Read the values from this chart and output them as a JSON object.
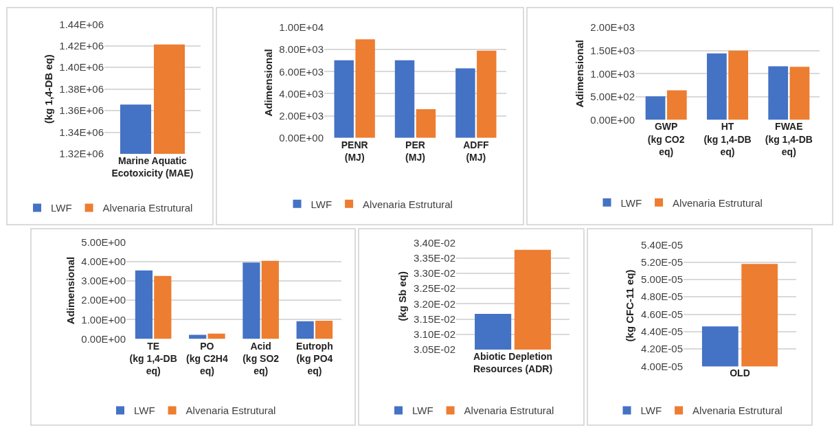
{
  "chart_data": [
    {
      "type": "bar",
      "ylabel": "(kg 1,4-DB eq)",
      "categories": [
        "Marine Aquatic Ecotoxicity (MAE)"
      ],
      "series": [
        {
          "name": "LWF",
          "color": "#4472c4",
          "values": [
            1365600
          ]
        },
        {
          "name": "Alvenaria Estrutural",
          "color": "#ed7d31",
          "values": [
            1421300
          ]
        }
      ],
      "ylim": [
        1320000,
        1440000
      ],
      "yticks": [
        {
          "value": 1320000,
          "label": "1.32E+06"
        },
        {
          "value": 1340000,
          "label": "1.34E+06"
        },
        {
          "value": 1360000,
          "label": "1.36E+06"
        },
        {
          "value": 1380000,
          "label": "1.38E+06"
        },
        {
          "value": 1400000,
          "label": "1.40E+06"
        },
        {
          "value": 1420000,
          "label": "1.42E+06"
        },
        {
          "value": 1440000,
          "label": "1.44E+06"
        }
      ],
      "grid": "y",
      "legend": "bottom"
    },
    {
      "type": "bar",
      "ylabel": "Adimensional",
      "categories": [
        "PENR (MJ)",
        "PER (MJ)",
        "ADFF (MJ)"
      ],
      "series": [
        {
          "name": "LWF",
          "color": "#4472c4",
          "values": [
            7040,
            7040,
            6300
          ]
        },
        {
          "name": "Alvenaria Estrutural",
          "color": "#ed7d31",
          "values": [
            8930,
            2600,
            7910
          ]
        }
      ],
      "ylim": [
        0,
        10000
      ],
      "yticks": [
        {
          "value": 0,
          "label": "0.00E+00"
        },
        {
          "value": 2000,
          "label": "2.00E+03"
        },
        {
          "value": 4000,
          "label": "4.00E+03"
        },
        {
          "value": 6000,
          "label": "6.00E+03"
        },
        {
          "value": 8000,
          "label": "8.00E+03"
        },
        {
          "value": 10000,
          "label": "1.00E+04"
        }
      ],
      "grid": "y",
      "legend": "bottom"
    },
    {
      "type": "bar",
      "ylabel": "Adimensional",
      "categories": [
        "GWP (kg CO2 eq)",
        "HT (kg 1,4-DB eq)",
        "FWAE (kg 1,4-DB eq)"
      ],
      "series": [
        {
          "name": "LWF",
          "color": "#4472c4",
          "values": [
            510,
            1440,
            1160
          ]
        },
        {
          "name": "Alvenaria Estrutural",
          "color": "#ed7d31",
          "values": [
            640,
            1500,
            1150
          ]
        }
      ],
      "ylim": [
        0,
        2000
      ],
      "yticks": [
        {
          "value": 0,
          "label": "0.00E+00"
        },
        {
          "value": 500,
          "label": "5.00E+02"
        },
        {
          "value": 1000,
          "label": "1.00E+03"
        },
        {
          "value": 1500,
          "label": "1.50E+03"
        },
        {
          "value": 2000,
          "label": "2.00E+03"
        }
      ],
      "grid": "y",
      "legend": "bottom"
    },
    {
      "type": "bar",
      "ylabel": "Adimensional",
      "categories": [
        "TE (kg 1,4-DB eq)",
        "PO (kg C2H4 eq)",
        "Acid (kg SO2 eq)",
        "Eutroph (kg PO4 eq)"
      ],
      "series": [
        {
          "name": "LWF",
          "color": "#4472c4",
          "values": [
            3.54,
            0.21,
            3.94,
            0.91
          ]
        },
        {
          "name": "Alvenaria Estrutural",
          "color": "#ed7d31",
          "values": [
            3.25,
            0.28,
            4.03,
            0.94
          ]
        }
      ],
      "ylim": [
        0,
        5
      ],
      "yticks": [
        {
          "value": 0,
          "label": "0.00E+00"
        },
        {
          "value": 1,
          "label": "1.00E+00"
        },
        {
          "value": 2,
          "label": "2.00E+00"
        },
        {
          "value": 3,
          "label": "3.00E+00"
        },
        {
          "value": 4,
          "label": "4.00E+00"
        },
        {
          "value": 5,
          "label": "5.00E+00"
        }
      ],
      "grid": "y",
      "legend": "bottom"
    },
    {
      "type": "bar",
      "ylabel": "(kg Sb eq)",
      "categories": [
        "Abiotic Depletion Resources (ADR)"
      ],
      "series": [
        {
          "name": "LWF",
          "color": "#4472c4",
          "values": [
            0.03167
          ]
        },
        {
          "name": "Alvenaria Estrutural",
          "color": "#ed7d31",
          "values": [
            0.03377
          ]
        }
      ],
      "ylim": [
        0.0305,
        0.034
      ],
      "yticks": [
        {
          "value": 0.0305,
          "label": "3.05E-02"
        },
        {
          "value": 0.031,
          "label": "3.10E-02"
        },
        {
          "value": 0.0315,
          "label": "3.15E-02"
        },
        {
          "value": 0.032,
          "label": "3.20E-02"
        },
        {
          "value": 0.0325,
          "label": "3.25E-02"
        },
        {
          "value": 0.033,
          "label": "3.30E-02"
        },
        {
          "value": 0.0335,
          "label": "3.35E-02"
        },
        {
          "value": 0.034,
          "label": "3.40E-02"
        }
      ],
      "grid": "y",
      "legend": "bottom"
    },
    {
      "type": "bar",
      "ylabel": "(kg CFC-11 eq)",
      "categories": [
        "OLD"
      ],
      "series": [
        {
          "name": "LWF",
          "color": "#4472c4",
          "values": [
            4.46e-05
          ]
        },
        {
          "name": "Alvenaria Estrutural",
          "color": "#ed7d31",
          "values": [
            5.18e-05
          ]
        }
      ],
      "ylim": [
        4e-05,
        5.4e-05
      ],
      "yticks": [
        {
          "value": 4e-05,
          "label": "4.00E-05"
        },
        {
          "value": 4.2e-05,
          "label": "4.20E-05"
        },
        {
          "value": 4.4e-05,
          "label": "4.40E-05"
        },
        {
          "value": 4.6e-05,
          "label": "4.60E-05"
        },
        {
          "value": 4.8e-05,
          "label": "4.80E-05"
        },
        {
          "value": 5e-05,
          "label": "5.00E-05"
        },
        {
          "value": 5.2e-05,
          "label": "5.20E-05"
        },
        {
          "value": 5.4e-05,
          "label": "5.40E-05"
        }
      ],
      "grid": "y",
      "legend": "bottom"
    }
  ]
}
